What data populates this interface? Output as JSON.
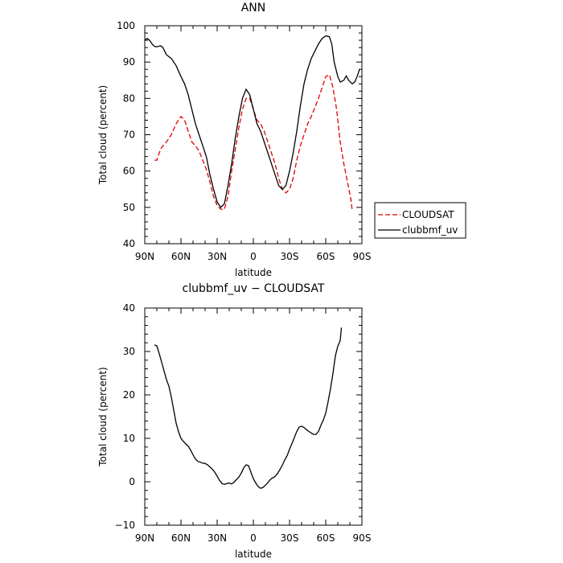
{
  "chart_data": [
    {
      "type": "line",
      "title": "ANN",
      "xlabel": "latitude",
      "ylabel": "Total cloud (percent)",
      "xlim": [
        90,
        -90
      ],
      "ylim": [
        40,
        100
      ],
      "x_ticks": [
        90,
        60,
        30,
        0,
        -30,
        -60,
        -90
      ],
      "x_tick_labels": [
        "90N",
        "60N",
        "30N",
        "0",
        "30S",
        "60S",
        "90S"
      ],
      "y_ticks": [
        40,
        50,
        60,
        70,
        80,
        90,
        100
      ],
      "y_tick_labels": [
        "40",
        "50",
        "60",
        "70",
        "80",
        "90",
        "100"
      ],
      "legend_position": "right",
      "series": [
        {
          "name": "CLOUDSAT",
          "color": "#e00000",
          "style": "dashed",
          "points": [
            [
              82,
              63
            ],
            [
              80,
              63
            ],
            [
              78,
              65
            ],
            [
              76,
              66.5
            ],
            [
              72,
              68
            ],
            [
              68,
              70
            ],
            [
              64,
              73
            ],
            [
              60,
              75
            ],
            [
              57,
              74
            ],
            [
              54,
              71
            ],
            [
              51,
              68
            ],
            [
              48,
              67
            ],
            [
              45,
              65.5
            ],
            [
              42,
              63
            ],
            [
              39,
              60.5
            ],
            [
              36,
              57
            ],
            [
              33,
              53
            ],
            [
              30,
              50.5
            ],
            [
              27,
              49.5
            ],
            [
              24,
              49.5
            ],
            [
              21,
              53
            ],
            [
              18,
              60
            ],
            [
              15,
              66
            ],
            [
              12,
              72
            ],
            [
              9,
              77
            ],
            [
              6,
              80
            ],
            [
              3,
              80
            ],
            [
              0,
              77
            ],
            [
              -3,
              74
            ],
            [
              -6,
              73
            ],
            [
              -9,
              71
            ],
            [
              -12,
              68
            ],
            [
              -15,
              65
            ],
            [
              -18,
              62
            ],
            [
              -21,
              58
            ],
            [
              -24,
              55
            ],
            [
              -27,
              54
            ],
            [
              -30,
              55
            ],
            [
              -33,
              58
            ],
            [
              -36,
              63
            ],
            [
              -39,
              67
            ],
            [
              -42,
              70
            ],
            [
              -45,
              73
            ],
            [
              -48,
              75
            ],
            [
              -51,
              77.5
            ],
            [
              -54,
              80
            ],
            [
              -57,
              83
            ],
            [
              -60,
              86
            ],
            [
              -63,
              86.5
            ],
            [
              -66,
              83
            ],
            [
              -69,
              77
            ],
            [
              -72,
              68
            ],
            [
              -75,
              62
            ],
            [
              -78,
              57
            ],
            [
              -81,
              52
            ],
            [
              -82,
              49
            ]
          ]
        },
        {
          "name": "clubbmf_uv",
          "color": "#000000",
          "style": "solid",
          "points": [
            [
              90,
              96
            ],
            [
              88,
              96.5
            ],
            [
              86,
              96
            ],
            [
              84,
              95
            ],
            [
              82,
              94.3
            ],
            [
              80,
              94.2
            ],
            [
              77,
              94.5
            ],
            [
              75,
              94
            ],
            [
              72,
              92
            ],
            [
              68,
              91
            ],
            [
              64,
              89
            ],
            [
              60,
              86
            ],
            [
              57,
              84
            ],
            [
              54,
              81
            ],
            [
              51,
              77
            ],
            [
              48,
              73
            ],
            [
              45,
              70
            ],
            [
              42,
              67
            ],
            [
              39,
              64
            ],
            [
              36,
              59
            ],
            [
              33,
              55
            ],
            [
              30,
              51.5
            ],
            [
              27,
              50
            ],
            [
              24,
              51
            ],
            [
              21,
              56
            ],
            [
              18,
              62
            ],
            [
              15,
              69
            ],
            [
              12,
              75
            ],
            [
              9,
              80
            ],
            [
              6,
              82.5
            ],
            [
              3,
              81
            ],
            [
              0,
              77
            ],
            [
              -3,
              73
            ],
            [
              -6,
              71
            ],
            [
              -9,
              68
            ],
            [
              -12,
              65
            ],
            [
              -15,
              62
            ],
            [
              -18,
              59
            ],
            [
              -21,
              56
            ],
            [
              -24,
              55
            ],
            [
              -27,
              56
            ],
            [
              -30,
              60
            ],
            [
              -33,
              65
            ],
            [
              -36,
              71
            ],
            [
              -39,
              78
            ],
            [
              -42,
              84
            ],
            [
              -45,
              88
            ],
            [
              -48,
              91
            ],
            [
              -51,
              93
            ],
            [
              -54,
              95
            ],
            [
              -57,
              96.5
            ],
            [
              -60,
              97.2
            ],
            [
              -63,
              97
            ],
            [
              -65,
              95
            ],
            [
              -67,
              90
            ],
            [
              -70,
              86
            ],
            [
              -72,
              84.5
            ],
            [
              -75,
              85
            ],
            [
              -77,
              86.2
            ],
            [
              -79,
              85
            ],
            [
              -82,
              84
            ],
            [
              -84,
              84.5
            ],
            [
              -86,
              86
            ],
            [
              -88,
              88
            ]
          ]
        }
      ]
    },
    {
      "type": "line",
      "title": "clubbmf_uv − CLOUDSAT",
      "xlabel": "latitude",
      "ylabel": "Total cloud (percent)",
      "xlim": [
        90,
        -90
      ],
      "ylim": [
        -10,
        40
      ],
      "x_ticks": [
        90,
        60,
        30,
        0,
        -30,
        -60,
        -90
      ],
      "x_tick_labels": [
        "90N",
        "60N",
        "30N",
        "0",
        "30S",
        "60S",
        "90S"
      ],
      "y_ticks": [
        -10,
        0,
        10,
        20,
        30,
        40
      ],
      "y_tick_labels": [
        "−10",
        "0",
        "10",
        "20",
        "30",
        "40"
      ],
      "series": [
        {
          "color": "#000000",
          "style": "solid",
          "points": [
            [
              82,
              31.5
            ],
            [
              80,
              31.3
            ],
            [
              78,
              29.5
            ],
            [
              76,
              27.5
            ],
            [
              74,
              25.5
            ],
            [
              72,
              23.5
            ],
            [
              70,
              22
            ],
            [
              68,
              19.5
            ],
            [
              66,
              16.5
            ],
            [
              64,
              13.5
            ],
            [
              62,
              11.5
            ],
            [
              60,
              10
            ],
            [
              58,
              9.3
            ],
            [
              56,
              8.7
            ],
            [
              54,
              8.2
            ],
            [
              52,
              7.3
            ],
            [
              50,
              6.2
            ],
            [
              48,
              5.2
            ],
            [
              46,
              4.7
            ],
            [
              44,
              4.5
            ],
            [
              42,
              4.3
            ],
            [
              40,
              4.2
            ],
            [
              38,
              3.9
            ],
            [
              36,
              3.4
            ],
            [
              34,
              2.9
            ],
            [
              32,
              2.2
            ],
            [
              30,
              1.3
            ],
            [
              28,
              0.3
            ],
            [
              26,
              -0.4
            ],
            [
              24,
              -0.6
            ],
            [
              22,
              -0.4
            ],
            [
              20,
              -0.3
            ],
            [
              18,
              -0.5
            ],
            [
              16,
              -0.1
            ],
            [
              14,
              0.5
            ],
            [
              12,
              1.1
            ],
            [
              10,
              2
            ],
            [
              8,
              3.2
            ],
            [
              6,
              3.9
            ],
            [
              4,
              3.7
            ],
            [
              2,
              2.2
            ],
            [
              0,
              0.7
            ],
            [
              -2,
              -0.3
            ],
            [
              -4,
              -1.1
            ],
            [
              -6,
              -1.5
            ],
            [
              -8,
              -1.3
            ],
            [
              -10,
              -0.8
            ],
            [
              -12,
              -0.2
            ],
            [
              -14,
              0.5
            ],
            [
              -16,
              0.9
            ],
            [
              -18,
              1.2
            ],
            [
              -20,
              1.9
            ],
            [
              -22,
              2.8
            ],
            [
              -24,
              3.8
            ],
            [
              -26,
              5
            ],
            [
              -28,
              6
            ],
            [
              -30,
              7.5
            ],
            [
              -32,
              8.8
            ],
            [
              -34,
              10.2
            ],
            [
              -36,
              11.6
            ],
            [
              -38,
              12.6
            ],
            [
              -40,
              12.8
            ],
            [
              -42,
              12.5
            ],
            [
              -44,
              12
            ],
            [
              -46,
              11.6
            ],
            [
              -48,
              11.2
            ],
            [
              -50,
              10.9
            ],
            [
              -52,
              10.9
            ],
            [
              -54,
              11.6
            ],
            [
              -56,
              13
            ],
            [
              -58,
              14.2
            ],
            [
              -60,
              15.8
            ],
            [
              -62,
              18.5
            ],
            [
              -64,
              21.5
            ],
            [
              -66,
              25
            ],
            [
              -68,
              29
            ],
            [
              -70,
              31.2
            ],
            [
              -72,
              32.5
            ],
            [
              -73,
              35.5
            ]
          ]
        }
      ]
    }
  ]
}
